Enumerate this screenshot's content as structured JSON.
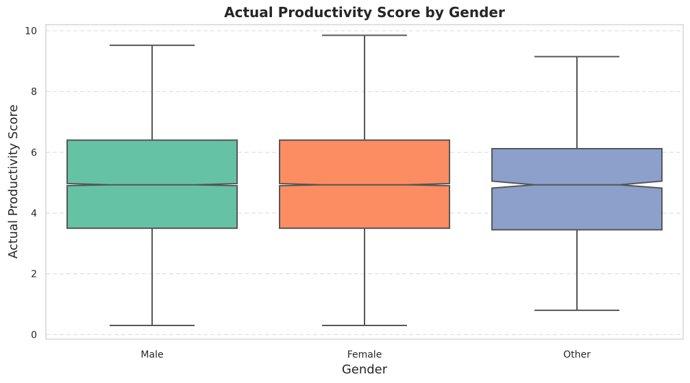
{
  "chart_data": {
    "type": "box",
    "title": "Actual Productivity Score by Gender",
    "xlabel": "Gender",
    "ylabel": "Actual Productivity Score",
    "categories": [
      "Male",
      "Female",
      "Other"
    ],
    "ylim": [
      -0.15,
      10.2
    ],
    "yticks": [
      0,
      2,
      4,
      6,
      8,
      10
    ],
    "grid": true,
    "notched": true,
    "boxes": [
      {
        "category": "Male",
        "whislo": 0.3,
        "q1": 3.5,
        "med": 4.93,
        "q3": 6.4,
        "whishi": 9.52,
        "notch_lo": 4.9,
        "notch_hi": 4.97,
        "color": "#66c2a5"
      },
      {
        "category": "Female",
        "whislo": 0.3,
        "q1": 3.5,
        "med": 4.93,
        "q3": 6.4,
        "whishi": 9.85,
        "notch_lo": 4.9,
        "notch_hi": 4.97,
        "color": "#fc8d62"
      },
      {
        "category": "Other",
        "whislo": 0.8,
        "q1": 3.45,
        "med": 4.93,
        "q3": 6.12,
        "whishi": 9.15,
        "notch_lo": 4.82,
        "notch_hi": 5.05,
        "color": "#8da0cb"
      }
    ]
  }
}
